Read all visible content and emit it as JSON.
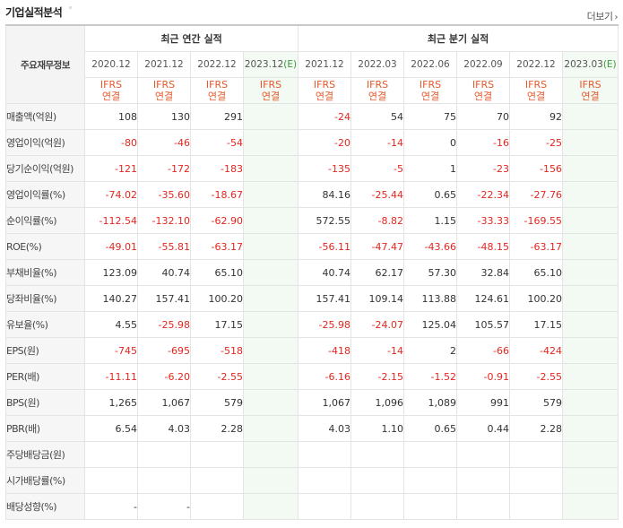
{
  "header": {
    "title": "기업실적분석",
    "more": "더보기",
    "more_icon": "chevron-right"
  },
  "table": {
    "item_header": "주요재무정보",
    "groups": {
      "annual": "최근 연간 실적",
      "quarterly": "최근 분기 실적"
    },
    "annual_years": [
      "2020.12",
      "2021.12",
      "2022.12",
      "2023.12(E)"
    ],
    "quarter_years": [
      "2021.12",
      "2022.03",
      "2022.06",
      "2022.09",
      "2022.12",
      "2023.03(E)"
    ],
    "standard_line1": "IFRS",
    "standard_line2": "연결",
    "rows": [
      {
        "label": "매출액(억원)",
        "annual": [
          "108",
          "130",
          "291",
          ""
        ],
        "quarter": [
          "-24",
          "54",
          "75",
          "70",
          "92",
          ""
        ]
      },
      {
        "label": "영업이익(억원)",
        "annual": [
          "-80",
          "-46",
          "-54",
          ""
        ],
        "quarter": [
          "-20",
          "-14",
          "0",
          "-16",
          "-25",
          ""
        ]
      },
      {
        "label": "당기순이익(억원)",
        "annual": [
          "-121",
          "-172",
          "-183",
          ""
        ],
        "quarter": [
          "-135",
          "-5",
          "1",
          "-23",
          "-156",
          ""
        ]
      },
      {
        "label": "영업이익률(%)",
        "annual": [
          "-74.02",
          "-35.60",
          "-18.67",
          ""
        ],
        "quarter": [
          "84.16",
          "-25.44",
          "0.65",
          "-22.34",
          "-27.76",
          ""
        ]
      },
      {
        "label": "순이익률(%)",
        "annual": [
          "-112.54",
          "-132.10",
          "-62.90",
          ""
        ],
        "quarter": [
          "572.55",
          "-8.82",
          "1.15",
          "-33.33",
          "-169.55",
          ""
        ]
      },
      {
        "label": "ROE(%)",
        "annual": [
          "-49.01",
          "-55.81",
          "-63.17",
          ""
        ],
        "quarter": [
          "-56.11",
          "-47.47",
          "-43.66",
          "-48.15",
          "-63.17",
          ""
        ]
      },
      {
        "label": "부채비율(%)",
        "annual": [
          "123.09",
          "40.74",
          "65.10",
          ""
        ],
        "quarter": [
          "40.74",
          "62.17",
          "57.30",
          "32.84",
          "65.10",
          ""
        ]
      },
      {
        "label": "당좌비율(%)",
        "annual": [
          "140.27",
          "157.41",
          "100.20",
          ""
        ],
        "quarter": [
          "157.41",
          "109.14",
          "113.88",
          "124.61",
          "100.20",
          ""
        ]
      },
      {
        "label": "유보율(%)",
        "annual": [
          "4.55",
          "-25.98",
          "17.15",
          ""
        ],
        "quarter": [
          "-25.98",
          "-24.07",
          "125.04",
          "105.57",
          "17.15",
          ""
        ]
      },
      {
        "label": "EPS(원)",
        "annual": [
          "-745",
          "-695",
          "-518",
          ""
        ],
        "quarter": [
          "-418",
          "-14",
          "2",
          "-66",
          "-424",
          ""
        ]
      },
      {
        "label": "PER(배)",
        "annual": [
          "-11.11",
          "-6.20",
          "-2.55",
          ""
        ],
        "quarter": [
          "-6.16",
          "-2.15",
          "-1.52",
          "-0.91",
          "-2.55",
          ""
        ]
      },
      {
        "label": "BPS(원)",
        "annual": [
          "1,265",
          "1,067",
          "579",
          ""
        ],
        "quarter": [
          "1,067",
          "1,096",
          "1,089",
          "991",
          "579",
          ""
        ]
      },
      {
        "label": "PBR(배)",
        "annual": [
          "6.54",
          "4.03",
          "2.28",
          ""
        ],
        "quarter": [
          "4.03",
          "1.10",
          "0.65",
          "0.44",
          "2.28",
          ""
        ]
      },
      {
        "label": "주당배당금(원)",
        "annual": [
          "",
          "",
          "",
          ""
        ],
        "quarter": [
          "",
          "",
          "",
          "",
          "",
          ""
        ]
      },
      {
        "label": "시가배당률(%)",
        "annual": [
          "",
          "",
          "",
          ""
        ],
        "quarter": [
          "",
          "",
          "",
          "",
          "",
          ""
        ]
      },
      {
        "label": "배당성향(%)",
        "annual": [
          "-",
          "-",
          "",
          ""
        ],
        "quarter": [
          "",
          "",
          "",
          "",
          "",
          ""
        ]
      }
    ]
  },
  "colors": {
    "negative": "#e5261f",
    "standard": "#e5592b",
    "estimate_bg": "#f3f9f3",
    "estimate_year": "#3a9a3a"
  }
}
